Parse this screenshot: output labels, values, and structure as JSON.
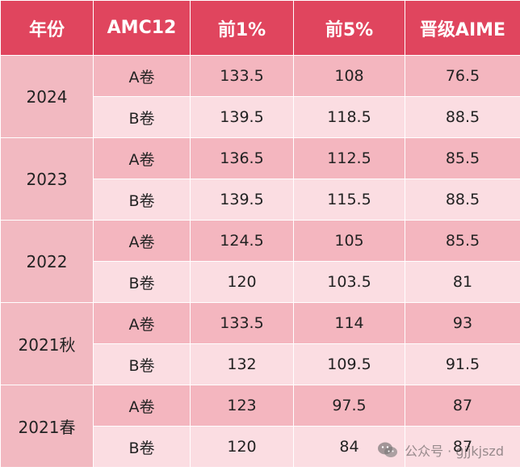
{
  "header": {
    "col_year": "年份",
    "col_amc": "AMC12",
    "col_top1": "前1%",
    "col_top5": "前5%",
    "col_aime": "晋级AIME"
  },
  "groups": [
    {
      "year": "2024",
      "rows": [
        {
          "paper": "A卷",
          "top1": "133.5",
          "top5": "108",
          "aime": "76.5"
        },
        {
          "paper": "B卷",
          "top1": "139.5",
          "top5": "118.5",
          "aime": "88.5"
        }
      ]
    },
    {
      "year": "2023",
      "rows": [
        {
          "paper": "A卷",
          "top1": "136.5",
          "top5": "112.5",
          "aime": "85.5"
        },
        {
          "paper": "B卷",
          "top1": "139.5",
          "top5": "115.5",
          "aime": "88.5"
        }
      ]
    },
    {
      "year": "2022",
      "rows": [
        {
          "paper": "A卷",
          "top1": "124.5",
          "top5": "105",
          "aime": "85.5"
        },
        {
          "paper": "B卷",
          "top1": "120",
          "top5": "103.5",
          "aime": "81"
        }
      ]
    },
    {
      "year": "2021秋",
      "rows": [
        {
          "paper": "A卷",
          "top1": "133.5",
          "top5": "114",
          "aime": "93"
        },
        {
          "paper": "B卷",
          "top1": "132",
          "top5": "109.5",
          "aime": "91.5"
        }
      ]
    },
    {
      "year": "2021春",
      "rows": [
        {
          "paper": "A卷",
          "top1": "123",
          "top5": "97.5",
          "aime": "87"
        },
        {
          "paper": "B卷",
          "top1": "120",
          "top5": "84",
          "aime": "87"
        }
      ]
    }
  ],
  "watermark": {
    "text": "公众号 · gjjkjszd",
    "icon": "wechat-icon"
  },
  "colors": {
    "header_bg": "#e0455e",
    "year_bg": "#f2b9c1",
    "row_a_bg": "#f4b6bf",
    "row_b_bg": "#fbdde2"
  }
}
